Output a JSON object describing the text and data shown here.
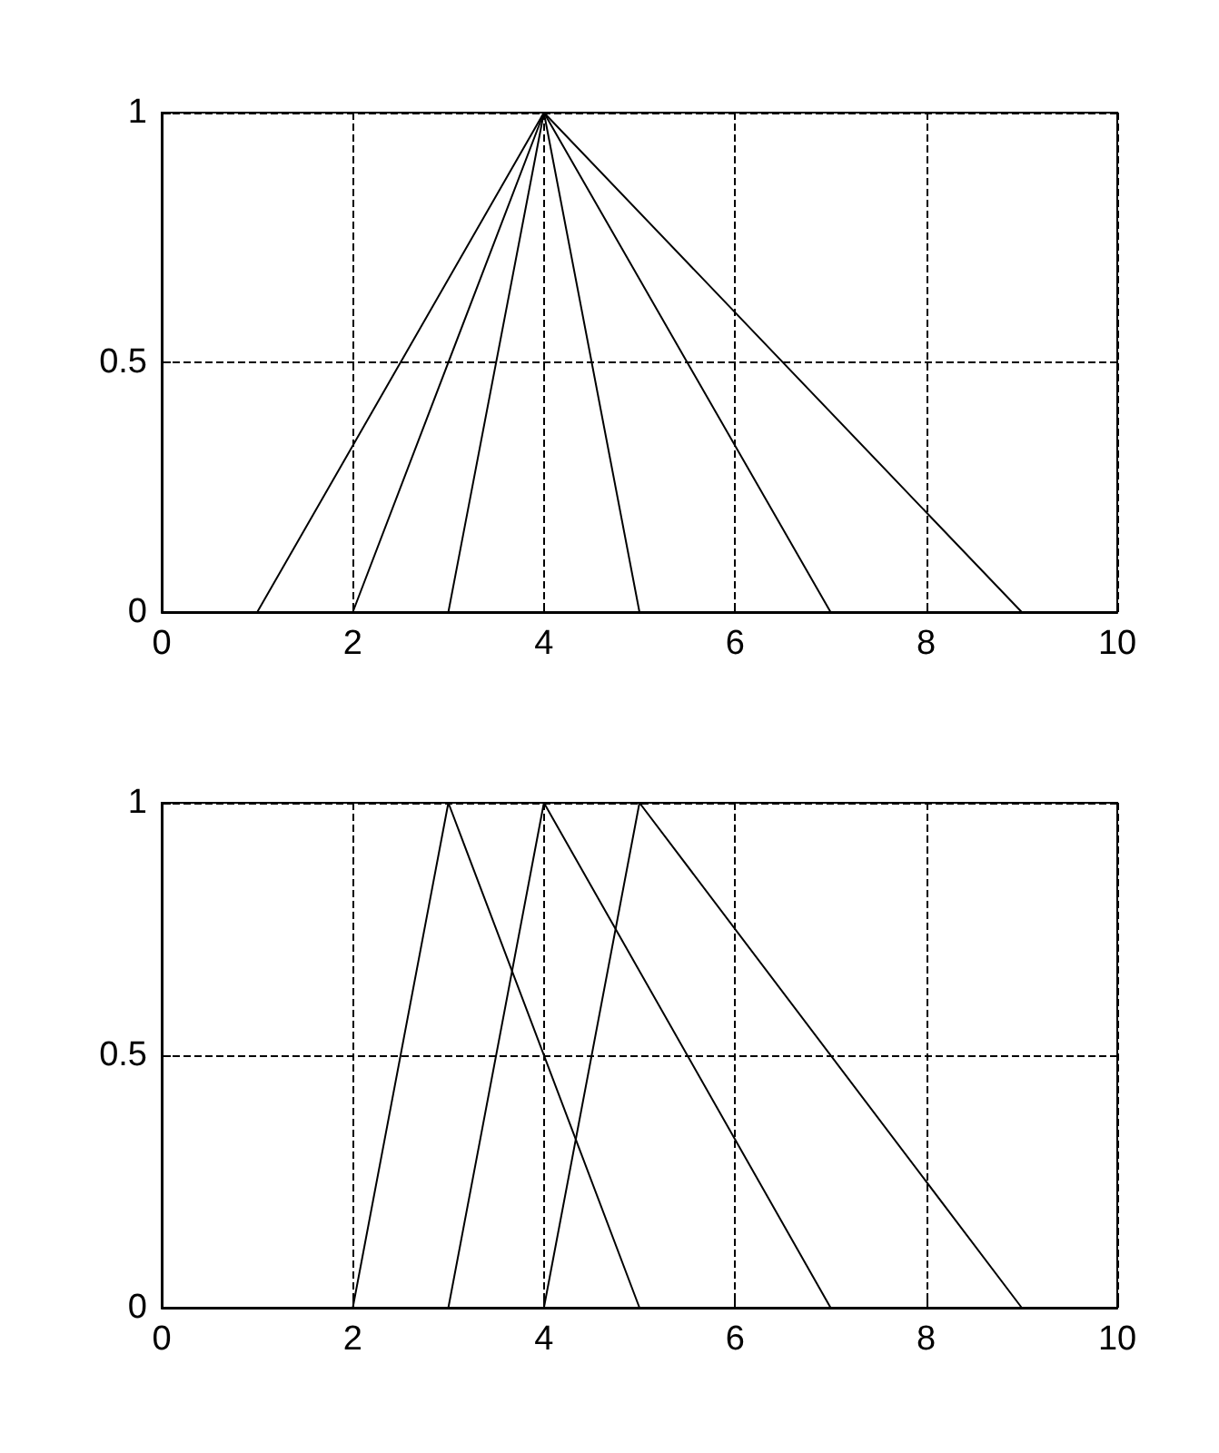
{
  "chart_data": [
    {
      "type": "line",
      "xlim": [
        0,
        10
      ],
      "xticks": [
        0,
        2,
        4,
        6,
        8,
        10
      ],
      "ylim": [
        0,
        1
      ],
      "yticks": [
        0,
        0.5,
        1
      ],
      "grid": true,
      "marker": "none",
      "series": [
        {
          "color": "#000000",
          "x": [
            3,
            4,
            5
          ],
          "values": [
            0,
            1,
            0
          ]
        },
        {
          "color": "#000000",
          "x": [
            2,
            4,
            7
          ],
          "values": [
            0,
            1,
            0
          ]
        },
        {
          "color": "#000000",
          "x": [
            1,
            4,
            9
          ],
          "values": [
            0,
            1,
            0
          ]
        }
      ]
    },
    {
      "type": "line",
      "xlim": [
        0,
        10
      ],
      "xticks": [
        0,
        2,
        4,
        6,
        8,
        10
      ],
      "ylim": [
        0,
        1
      ],
      "yticks": [
        0,
        0.5,
        1
      ],
      "grid": true,
      "marker": "none",
      "series": [
        {
          "color": "#000000",
          "x": [
            2,
            3,
            5
          ],
          "values": [
            0,
            1,
            0
          ]
        },
        {
          "color": "#000000",
          "x": [
            3,
            4,
            7
          ],
          "values": [
            0,
            1,
            0
          ]
        },
        {
          "color": "#000000",
          "x": [
            4,
            5,
            9
          ],
          "values": [
            0,
            1,
            0
          ]
        }
      ]
    }
  ]
}
